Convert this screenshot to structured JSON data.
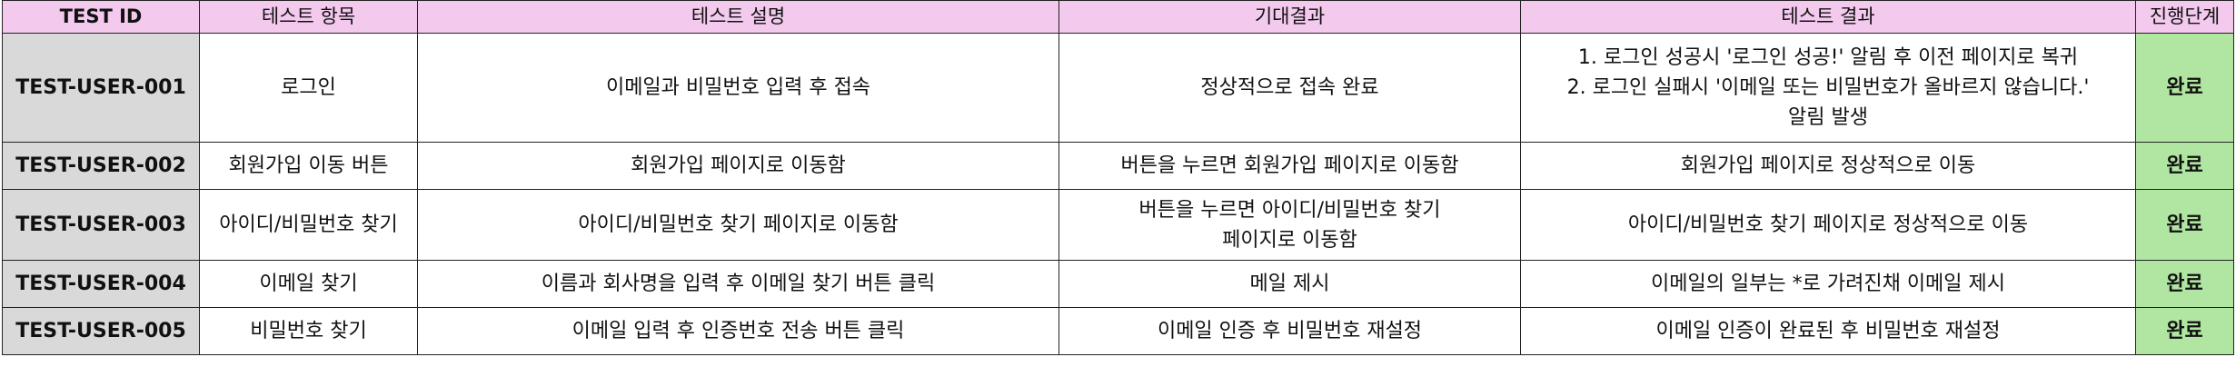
{
  "header": {
    "test_id": "TEST ID",
    "item": "테스트 항목",
    "description": "테스트 설명",
    "expected": "기대결과",
    "result": "테스트 결과",
    "status": "진행단계"
  },
  "rows": [
    {
      "id": "TEST-USER-001",
      "item": "로그인",
      "description": "이메일과 비밀번호 입력 후 접속",
      "expected": "정상적으로 접속 완료",
      "result_lines": [
        "1. 로그인 성공시 '로그인 성공!' 알림 후 이전 페이지로 복귀",
        "2. 로그인 실패시 '이메일 또는 비밀번호가 올바르지 않습니다.'",
        "알림 발생"
      ],
      "status": "완료"
    },
    {
      "id": "TEST-USER-002",
      "item": "회원가입 이동 버튼",
      "description": "회원가입 페이지로 이동함",
      "expected": "버튼을 누르면 회원가입 페이지로 이동함",
      "result": "회원가입 페이지로 정상적으로 이동",
      "status": "완료"
    },
    {
      "id": "TEST-USER-003",
      "item": "아이디/비밀번호 찾기",
      "description": "아이디/비밀번호 찾기 페이지로 이동함",
      "expected_lines": [
        "버튼을 누르면 아이디/비밀번호 찾기",
        "페이지로 이동함"
      ],
      "result": "아이디/비밀번호 찾기 페이지로 정상적으로 이동",
      "status": "완료"
    },
    {
      "id": "TEST-USER-004",
      "item": "이메일 찾기",
      "description": "이름과 회사명을 입력 후 이메일 찾기 버튼 클릭",
      "expected": "메일 제시",
      "result": "이메일의 일부는 *로 가려진채 이메일 제시",
      "status": "완료"
    },
    {
      "id": "TEST-USER-005",
      "item": "비밀번호 찾기",
      "description": "이메일 입력 후 인증번호 전송 버튼 클릭",
      "expected": "이메일 인증 후 비밀번호 재설정",
      "result": "이메일 인증이 완료된 후 비밀번호 재설정",
      "status": "완료"
    }
  ],
  "colors": {
    "header_bg": "#f3c9ee",
    "id_bg": "#d9d9d9",
    "status_bg": "#b1e6a2",
    "border": "#222222"
  }
}
